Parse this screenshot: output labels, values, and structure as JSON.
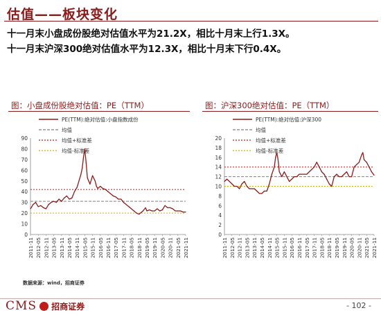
{
  "header": {
    "title": "估值——板块变化",
    "bullet1": "十一月末小盘成份股绝对估值水平为21.2X，相比十月末上行1.3X。",
    "bullet2": "十一月末沪深300绝对估值水平为12.3X，相比十月末下行0.4X。"
  },
  "footer": {
    "source": "数据来源：wind，招商证券",
    "logo_text": "CMS",
    "logo_cn": "招商证券",
    "page": "- 102 -"
  },
  "colors": {
    "accent": "#8b1a1a",
    "series": "#8b1a1a",
    "mean": "#808080",
    "plus": "#c01c1c",
    "minus": "#d4b000"
  },
  "chart_data": [
    {
      "type": "line",
      "title": "图：小盘成份股绝对估值：PE（TTM）",
      "ylim": [
        0,
        90
      ],
      "yticks": [
        0,
        10,
        20,
        30,
        40,
        50,
        60,
        70,
        80,
        90
      ],
      "xticks": [
        "2011-11",
        "2012-05",
        "2012-11",
        "2013-05",
        "2013-11",
        "2014-05",
        "2014-11",
        "2015-05",
        "2015-11",
        "2016-05",
        "2016-11",
        "2017-05",
        "2017-11",
        "2018-05",
        "2018-11",
        "2019-05",
        "2019-11",
        "2020-05",
        "2020-11",
        "2021-05",
        "2021-11"
      ],
      "legend": [
        "PE(TTM):绝对估值:小盘指数成份",
        "均值",
        "均值+标准差",
        "均值-标准差"
      ],
      "reference_lines": {
        "mean": 31,
        "mean_plus_std": 42,
        "mean_minus_std": 20
      },
      "series": [
        {
          "name": "PE(TTM):绝对估值:小盘指数成份",
          "x": [
            "2011-11",
            "2012-01",
            "2012-03",
            "2012-05",
            "2012-07",
            "2012-09",
            "2012-11",
            "2013-01",
            "2013-03",
            "2013-05",
            "2013-07",
            "2013-09",
            "2013-11",
            "2014-01",
            "2014-03",
            "2014-05",
            "2014-07",
            "2014-09",
            "2014-11",
            "2015-01",
            "2015-02",
            "2015-03",
            "2015-04",
            "2015-05",
            "2015-06",
            "2015-07",
            "2015-08",
            "2015-09",
            "2015-11",
            "2016-01",
            "2016-02",
            "2016-03",
            "2016-05",
            "2016-07",
            "2016-09",
            "2016-11",
            "2017-01",
            "2017-03",
            "2017-05",
            "2017-07",
            "2017-09",
            "2017-11",
            "2018-01",
            "2018-03",
            "2018-05",
            "2018-07",
            "2018-09",
            "2018-11",
            "2019-01",
            "2019-02",
            "2019-04",
            "2019-05",
            "2019-07",
            "2019-09",
            "2019-11",
            "2020-01",
            "2020-03",
            "2020-05",
            "2020-07",
            "2020-09",
            "2020-11",
            "2021-01",
            "2021-03",
            "2021-05",
            "2021-07",
            "2021-09",
            "2021-11"
          ],
          "values": [
            24,
            28,
            30,
            26,
            27,
            25,
            24,
            28,
            30,
            31,
            30,
            33,
            31,
            34,
            36,
            33,
            34,
            40,
            44,
            52,
            56,
            62,
            72,
            80,
            67,
            53,
            50,
            47,
            55,
            50,
            45,
            43,
            45,
            43,
            42,
            40,
            38,
            36,
            35,
            33,
            33,
            30,
            28,
            26,
            24,
            22,
            20,
            19,
            21,
            22,
            25,
            22,
            23,
            22,
            22,
            24,
            22,
            23,
            27,
            25,
            25,
            24,
            22,
            22,
            22,
            21,
            21
          ]
        }
      ]
    },
    {
      "type": "line",
      "title": "图：沪深300绝对估值：PE（TTM）",
      "ylim": [
        0,
        20
      ],
      "yticks": [
        0,
        2,
        4,
        6,
        8,
        10,
        12,
        14,
        16,
        18,
        20
      ],
      "xticks": [
        "2011-11",
        "2012-05",
        "2012-11",
        "2013-05",
        "2013-11",
        "2014-05",
        "2014-11",
        "2015-05",
        "2015-11",
        "2016-05",
        "2016-11",
        "2017-05",
        "2017-11",
        "2018-05",
        "2018-11",
        "2019-05",
        "2019-11",
        "2020-05",
        "2020-11",
        "2021-05",
        "2021-11"
      ],
      "legend": [
        "PE(TTM):绝对估值:沪深300",
        "均值",
        "均值+标准差",
        "均值-标准差"
      ],
      "reference_lines": {
        "mean": 12,
        "mean_plus_std": 14,
        "mean_minus_std": 10
      },
      "series": [
        {
          "name": "PE(TTM):绝对估值:沪深300",
          "x": [
            "2011-11",
            "2012-01",
            "2012-03",
            "2012-05",
            "2012-07",
            "2012-09",
            "2012-11",
            "2013-01",
            "2013-03",
            "2013-05",
            "2013-07",
            "2013-09",
            "2013-11",
            "2014-01",
            "2014-03",
            "2014-05",
            "2014-07",
            "2014-09",
            "2014-11",
            "2015-01",
            "2015-03",
            "2015-04",
            "2015-05",
            "2015-06",
            "2015-07",
            "2015-09",
            "2015-11",
            "2016-01",
            "2016-03",
            "2016-05",
            "2016-07",
            "2016-09",
            "2016-11",
            "2017-01",
            "2017-03",
            "2017-05",
            "2017-07",
            "2017-09",
            "2017-11",
            "2018-01",
            "2018-03",
            "2018-05",
            "2018-07",
            "2018-09",
            "2018-11",
            "2019-01",
            "2019-03",
            "2019-05",
            "2019-07",
            "2019-09",
            "2019-11",
            "2020-01",
            "2020-03",
            "2020-05",
            "2020-07",
            "2020-09",
            "2020-11",
            "2021-01",
            "2021-02",
            "2021-03",
            "2021-05",
            "2021-07",
            "2021-09",
            "2021-11"
          ],
          "values": [
            11,
            11.5,
            11,
            10.5,
            10,
            10,
            9.5,
            10.5,
            11,
            10,
            9.5,
            9.5,
            9.5,
            9,
            8.5,
            8.5,
            9,
            9,
            10.5,
            12.5,
            14,
            16,
            17,
            15.5,
            13,
            12,
            13,
            12,
            11,
            11.5,
            12,
            12,
            12.5,
            12.5,
            12.5,
            12.5,
            13,
            13.5,
            14,
            15,
            14,
            13,
            12.5,
            11.5,
            10.5,
            10,
            12,
            12.5,
            12,
            12,
            12.5,
            13,
            12,
            12,
            14,
            14.5,
            15,
            16.5,
            17,
            15.5,
            15,
            14,
            13,
            12.3
          ]
        }
      ]
    }
  ]
}
